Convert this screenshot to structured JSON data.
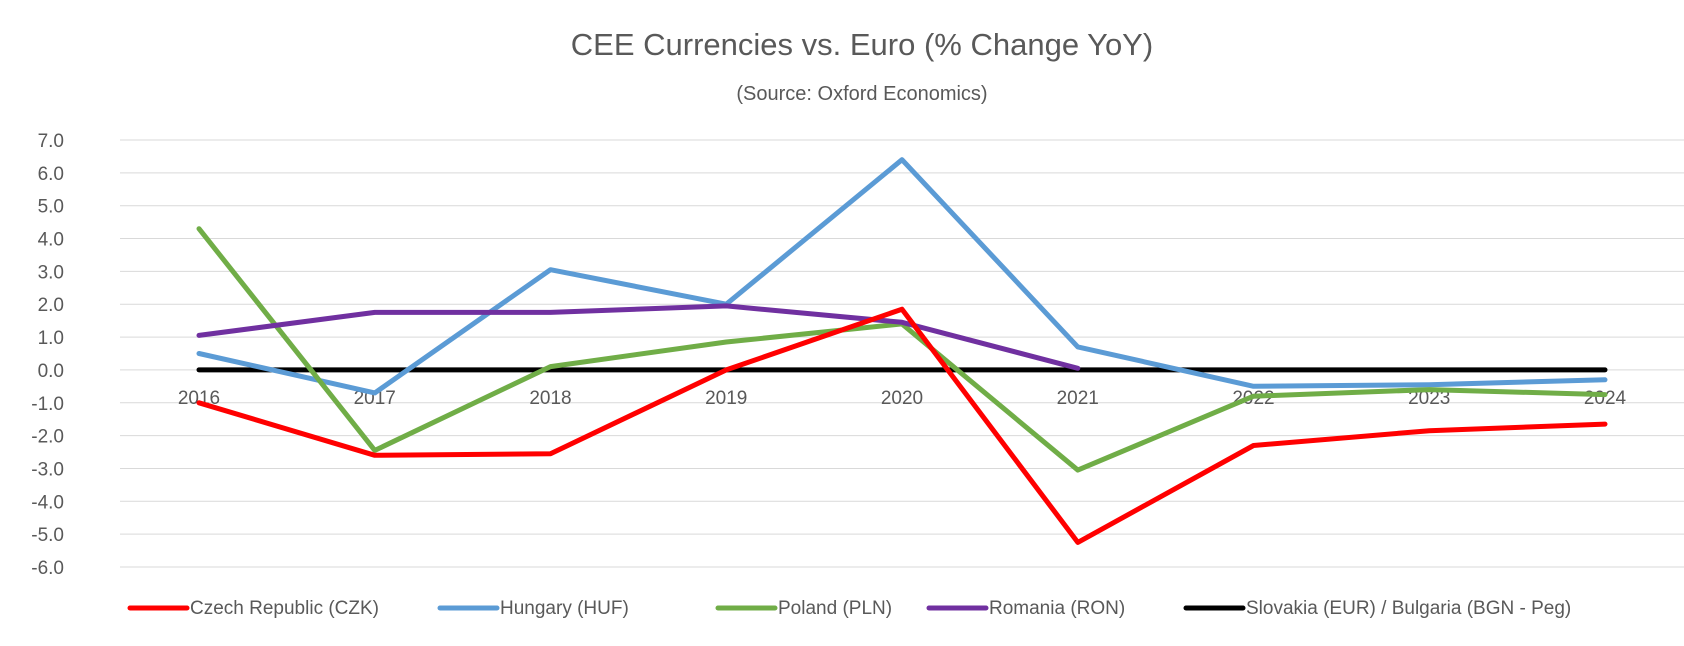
{
  "chart_data": {
    "type": "line",
    "title": "CEE Currencies vs. Euro (% Change YoY)",
    "subtitle": "(Source:  Oxford Economics)",
    "xlabel": "",
    "ylabel": "",
    "categories": [
      "2016",
      "2017",
      "2018",
      "2019",
      "2020",
      "2021",
      "2022",
      "2023",
      "2024"
    ],
    "ylim": [
      -6.0,
      7.0
    ],
    "yticks": [
      7.0,
      6.0,
      5.0,
      4.0,
      3.0,
      2.0,
      1.0,
      0.0,
      -1.0,
      -2.0,
      -3.0,
      -4.0,
      -5.0,
      -6.0
    ],
    "ytick_labels": [
      "7.0",
      "6.0",
      "5.0",
      "4.0",
      "3.0",
      "2.0",
      "1.0",
      "0.0",
      "-1.0",
      "-2.0",
      "-3.0",
      "-4.0",
      "-5.0",
      "-6.0"
    ],
    "grid": true,
    "legend_position": "bottom",
    "series": [
      {
        "name": "Czech Republic (CZK)",
        "color": "#ff0000",
        "values": [
          -1.0,
          -2.6,
          -2.55,
          0.0,
          1.85,
          -5.25,
          -2.3,
          -1.85,
          -1.65
        ]
      },
      {
        "name": "Hungary (HUF)",
        "color": "#5b9bd5",
        "values": [
          0.5,
          -0.7,
          3.05,
          2.0,
          6.4,
          0.7,
          -0.5,
          -0.45,
          -0.3
        ]
      },
      {
        "name": "Poland (PLN)",
        "color": "#70ad47",
        "values": [
          4.3,
          -2.45,
          0.1,
          0.85,
          1.4,
          -3.05,
          -0.8,
          -0.6,
          -0.75
        ]
      },
      {
        "name": "Romania (RON)",
        "color": "#7030a0",
        "values": [
          1.05,
          1.75,
          1.75,
          1.95,
          1.45,
          0.05,
          null,
          null,
          null
        ]
      },
      {
        "name": "Slovakia (EUR) / Bulgaria (BGN - Peg)",
        "color": "#000000",
        "values": [
          0.0,
          0.0,
          0.0,
          0.0,
          0.0,
          0.0,
          0.0,
          0.0,
          0.0
        ]
      }
    ]
  }
}
